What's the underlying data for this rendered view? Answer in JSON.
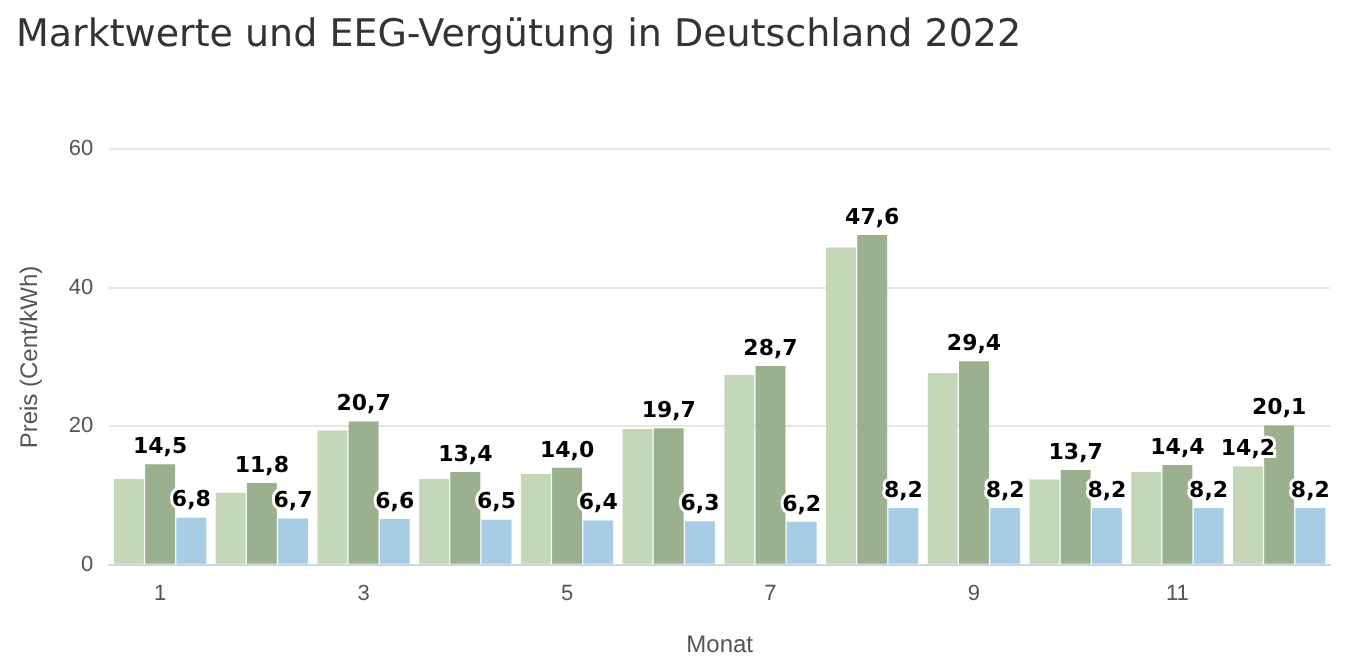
{
  "chart_data": {
    "type": "bar",
    "title": "Marktwerte und EEG-Vergütung in Deutschland 2022",
    "xlabel": "Monat",
    "ylabel": "Preis (Cent/kWh)",
    "categories": [
      "1",
      null,
      "3",
      null,
      "5",
      null,
      "7",
      null,
      "9",
      null,
      "11",
      null
    ],
    "series": [
      {
        "color": "#c4d7b8",
        "values": [
          12.4,
          10.4,
          19.4,
          12.4,
          13.1,
          19.6,
          27.4,
          45.8,
          27.7,
          12.3,
          13.4,
          14.2
        ],
        "value_labels": [
          null,
          null,
          null,
          null,
          null,
          null,
          null,
          null,
          null,
          null,
          null,
          "14,2"
        ]
      },
      {
        "color": "#9bb08f",
        "values": [
          14.5,
          11.8,
          20.7,
          13.4,
          14.0,
          19.7,
          28.7,
          47.6,
          29.4,
          13.7,
          14.4,
          20.1
        ],
        "value_labels": [
          "14,5",
          "11,8",
          "20,7",
          "13,4",
          "14,0",
          "19,7",
          "28,7",
          "47,6",
          "29,4",
          "13,7",
          "14,4",
          "20,1"
        ]
      },
      {
        "color": "#a6cde3",
        "values": [
          6.8,
          6.7,
          6.6,
          6.5,
          6.4,
          6.3,
          6.2,
          8.2,
          8.2,
          8.2,
          8.2,
          8.2
        ],
        "value_labels": [
          "6,8",
          "6,7",
          "6,6",
          "6,5",
          "6,4",
          "6,3",
          "6,2",
          "8,2",
          "8,2",
          "8,2",
          "8,2",
          "8,2"
        ]
      }
    ],
    "ylim": [
      0,
      60
    ],
    "yticks": [
      0,
      20,
      40,
      60
    ],
    "grid": "y",
    "legend": false
  }
}
